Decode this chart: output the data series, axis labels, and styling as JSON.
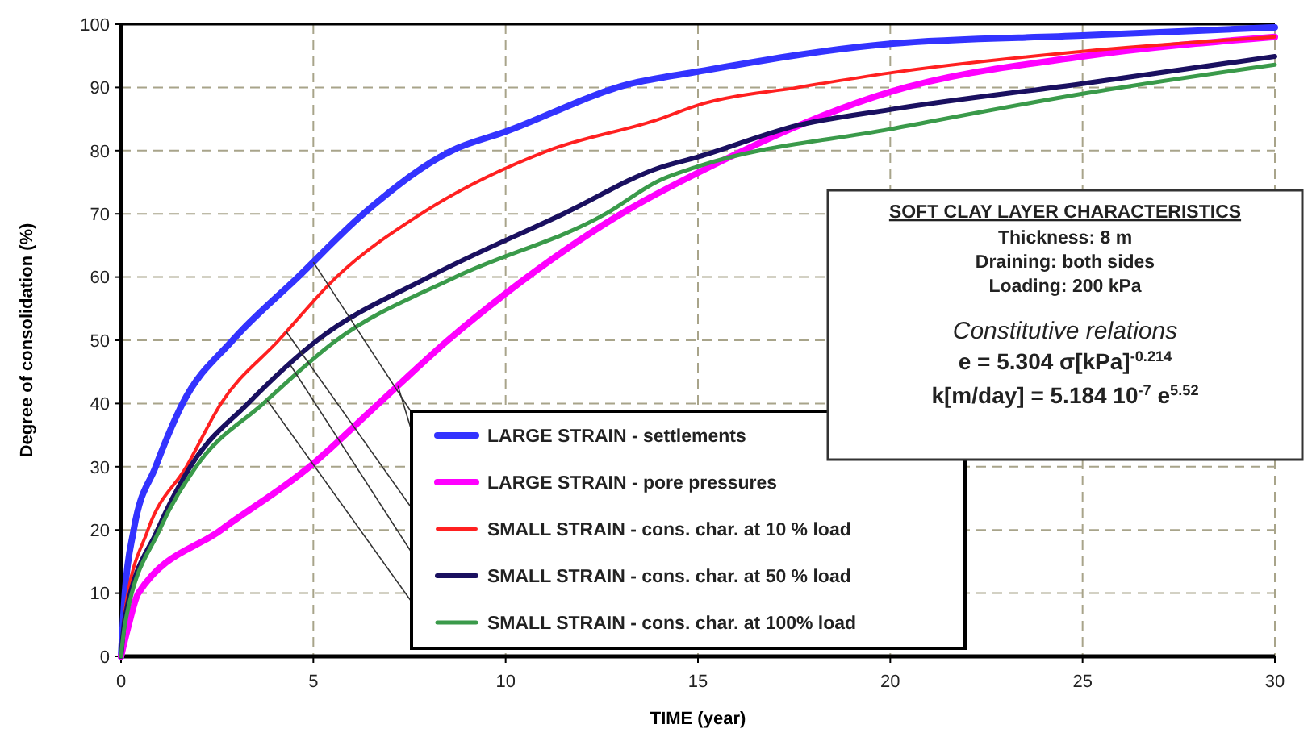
{
  "chart_data": {
    "type": "line",
    "xlabel": "TIME (year)",
    "ylabel": "Degree of consolidation (%)",
    "xlim": [
      0,
      30
    ],
    "ylim": [
      0,
      100
    ],
    "xticks": [
      0,
      5,
      10,
      15,
      20,
      25,
      30
    ],
    "yticks": [
      0,
      10,
      20,
      30,
      40,
      50,
      60,
      70,
      80,
      90,
      100
    ],
    "grid": true,
    "legend": "bottom",
    "marker": "none",
    "line_style": "solid",
    "series": [
      {
        "name": "LARGE STRAIN - settlements",
        "color": "#3333ff",
        "x": [
          0,
          0.1,
          0.33,
          0.9,
          1.6,
          2.9,
          4.6,
          6.3,
          8.6,
          10,
          13.2,
          15,
          20,
          25,
          30
        ],
        "values": [
          0,
          10,
          20,
          30,
          40,
          50,
          60,
          70,
          80,
          83,
          90.5,
          92.5,
          96.9,
          98.2,
          99.5
        ]
      },
      {
        "name": "LARGE STRAIN - pore pressures",
        "color": "#ff00ff",
        "x": [
          0,
          0.2,
          0.45,
          2.6,
          4.9,
          6.7,
          8.5,
          10,
          13.2,
          15,
          20,
          25,
          30
        ],
        "values": [
          0,
          5,
          10,
          20,
          30,
          40,
          50,
          57.4,
          70.7,
          76.5,
          89.3,
          94.9,
          98
        ]
      },
      {
        "name": "SMALL STRAIN - cons. char. at 10 % load",
        "color": "#ff2020",
        "x": [
          0,
          0.1,
          0.7,
          1.7,
          2.6,
          4.1,
          5.6,
          7.8,
          11.1,
          14,
          15,
          17.6,
          20,
          25,
          30
        ],
        "values": [
          0,
          7,
          20,
          30,
          40,
          50,
          60,
          70,
          80,
          85,
          87.2,
          90,
          92.3,
          95.7,
          98
        ]
      },
      {
        "name": "SMALL STRAIN - cons. char. at 50 % load",
        "color": "#1a1060",
        "x": [
          0,
          0.1,
          0.95,
          1.8,
          3.3,
          5.1,
          8,
          11.5,
          14,
          15,
          17.6,
          20,
          25,
          30
        ],
        "values": [
          0,
          6,
          20,
          30,
          40,
          50,
          60,
          70,
          77.3,
          79,
          84,
          86.5,
          90.6,
          94.9
        ]
      },
      {
        "name": "SMALL STRAIN - cons. char. at 100% load",
        "color": "#3a9a4a",
        "x": [
          0,
          0.1,
          1,
          1.95,
          3.7,
          5.6,
          8.7,
          12.6,
          14,
          15,
          20,
          25,
          30
        ],
        "values": [
          0,
          5,
          20,
          30,
          40,
          50,
          60,
          70,
          75.3,
          77.5,
          83.4,
          89,
          93.6
        ]
      }
    ],
    "annotations": [
      "SOFT CLAY LAYER CHARACTERISTICS",
      "Thickness: 8 m",
      "Draining: both sides",
      "Loading: 200 kPa",
      "Constitutive relations",
      "e = 5.304 σ[kPa]$^{-0.214}$",
      "k[m/day] = 5.184 10$^{-7}$  e$^{5.52}$"
    ]
  }
}
